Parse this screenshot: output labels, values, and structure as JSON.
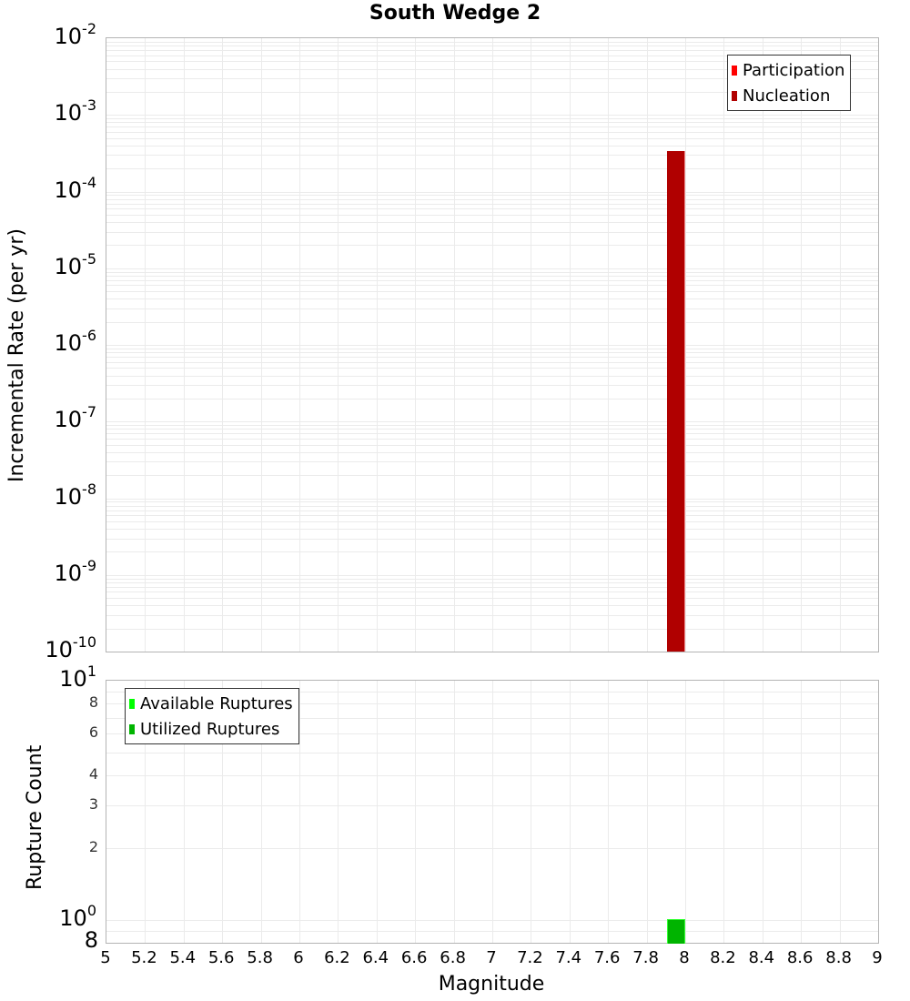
{
  "chart_data": [
    {
      "type": "bar",
      "title": "South Wedge 2",
      "xlabel": "Magnitude",
      "ylabel": "Incremental Rate (per yr)",
      "yscale": "log",
      "ylim": [
        1e-10,
        0.01
      ],
      "xlim": [
        5,
        9
      ],
      "yticks": [
        "10^-2",
        "10^-3",
        "10^-4",
        "10^-5",
        "10^-6",
        "10^-7",
        "10^-8",
        "10^-9",
        "10^-10"
      ],
      "grid": true,
      "legend_position": "top-right",
      "series": [
        {
          "name": "Participation",
          "color": "#ff0000",
          "bins": [
            {
              "x_start": 7.9,
              "x_end": 8.0,
              "value": 0.00034
            }
          ]
        },
        {
          "name": "Nucleation",
          "color": "#b00000",
          "bins": [
            {
              "x_start": 7.9,
              "x_end": 8.0,
              "value": 0.00034
            }
          ]
        }
      ]
    },
    {
      "type": "bar",
      "title": "",
      "xlabel": "Magnitude",
      "ylabel": "Rupture Count",
      "yscale": "log",
      "ylim": [
        0.8,
        10
      ],
      "xlim": [
        5,
        9
      ],
      "xticks": [
        "5",
        "5.2",
        "5.4",
        "5.6",
        "5.8",
        "6",
        "6.2",
        "6.4",
        "6.6",
        "6.8",
        "7",
        "7.2",
        "7.4",
        "7.6",
        "7.8",
        "8",
        "8.2",
        "8.4",
        "8.6",
        "8.8",
        "9"
      ],
      "yticks": [
        "8",
        "10^0",
        "2",
        "3",
        "4",
        "6",
        "8",
        "10^1"
      ],
      "grid": true,
      "legend_position": "top-left",
      "series": [
        {
          "name": "Available Ruptures",
          "color": "#00ff00",
          "bins": [
            {
              "x_start": 7.9,
              "x_end": 8.0,
              "value": 1
            }
          ]
        },
        {
          "name": "Utilized Ruptures",
          "color": "#00b400",
          "bins": [
            {
              "x_start": 7.9,
              "x_end": 8.0,
              "value": 1
            }
          ]
        }
      ]
    }
  ],
  "labels": {
    "title": "South Wedge 2",
    "top_ylabel": "Incremental Rate (per yr)",
    "bottom_ylabel": "Rupture Count",
    "xlabel": "Magnitude",
    "top_legend": [
      "Participation",
      "Nucleation"
    ],
    "bottom_legend": [
      "Available Ruptures",
      "Utilized Ruptures"
    ],
    "top_yticks": [
      {
        "base": "10",
        "exp": "-2"
      },
      {
        "base": "10",
        "exp": "-3"
      },
      {
        "base": "10",
        "exp": "-4"
      },
      {
        "base": "10",
        "exp": "-5"
      },
      {
        "base": "10",
        "exp": "-6"
      },
      {
        "base": "10",
        "exp": "-7"
      },
      {
        "base": "10",
        "exp": "-8"
      },
      {
        "base": "10",
        "exp": "-9"
      },
      {
        "base": "10",
        "exp": "-10"
      }
    ],
    "bottom_yticks_major": [
      {
        "base": "10",
        "exp": "1"
      },
      {
        "base": "10",
        "exp": "0"
      }
    ],
    "bottom_yticks_minor": [
      "8",
      "6",
      "4",
      "3",
      "2"
    ],
    "bottom_ytick_min": "8",
    "xticks": [
      "5",
      "5.2",
      "5.4",
      "5.6",
      "5.8",
      "6",
      "6.2",
      "6.4",
      "6.6",
      "6.8",
      "7",
      "7.2",
      "7.4",
      "7.6",
      "7.8",
      "8",
      "8.2",
      "8.4",
      "8.6",
      "8.8",
      "9"
    ]
  },
  "colors": {
    "participation": "#ff0000",
    "nucleation": "#b00000",
    "available": "#00ff00",
    "utilized": "#00b400",
    "grid": "#ebebeb",
    "axis": "#b4b4b4"
  }
}
